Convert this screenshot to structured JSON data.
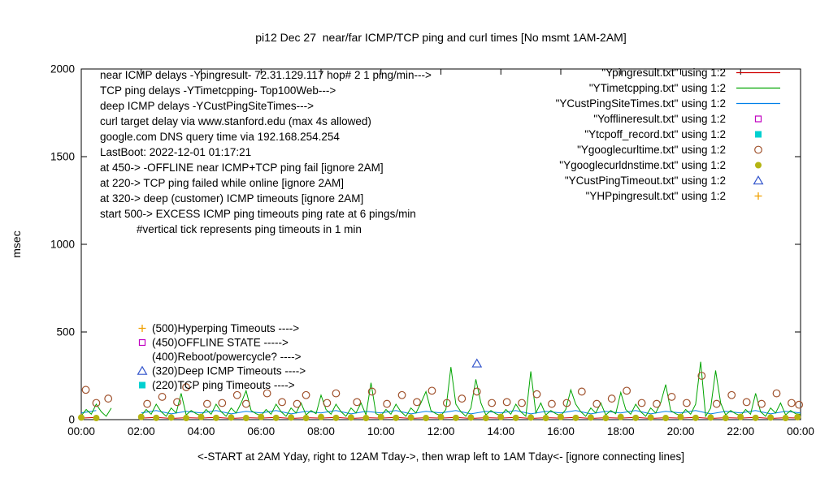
{
  "chart_data": {
    "type": "mixed-line-scatter",
    "title": "pi12 Dec 27  near/far ICMP/TCP ping and curl times [No msmt 1AM-2AM]",
    "xlabel": "<-START at 2AM Yday, right to 12AM Tday->, then wrap left to 1AM Tday<- [ignore connecting lines]",
    "ylabel": "msec",
    "x_tick_labels": [
      "00:00",
      "02:00",
      "04:00",
      "06:00",
      "08:00",
      "10:00",
      "12:00",
      "14:00",
      "16:00",
      "18:00",
      "20:00",
      "22:00",
      "00:00"
    ],
    "x_range_hours": [
      0,
      24
    ],
    "y_ticks": [
      0,
      500,
      1000,
      1500,
      2000
    ],
    "ylim": [
      0,
      2000
    ],
    "grid": false,
    "legend_position": "top-right",
    "inplot_notes": [
      {
        "text": "near ICMP delays -Ypingresult- 72.31.129.117 hop# 2 1 ping/min--->",
        "indent": 0
      },
      {
        "text": "TCP ping delays -YTimetcpping- Top100Web--->",
        "indent": 0
      },
      {
        "text": "deep ICMP delays -YCustPingSiteTimes--->",
        "indent": 0
      },
      {
        "text": "curl target delay via www.stanford.edu (max 4s allowed)",
        "indent": 0
      },
      {
        "text": "google.com DNS query time via 192.168.254.254",
        "indent": 0
      },
      {
        "text": "LastBoot: 2022-12-01 01:17:21",
        "indent": 0
      },
      {
        "text": "at 450-> -OFFLINE near ICMP+TCP ping fail [ignore 2AM]",
        "indent": 0
      },
      {
        "text": "at 220-> TCP ping failed while online [ignore 2AM]",
        "indent": 0
      },
      {
        "text": "at 320-> deep (customer) ICMP timeouts [ignore 2AM]",
        "indent": 0
      },
      {
        "text": "start 500-> EXCESS ICMP ping timeouts ping rate at 6 pings/min",
        "indent": 0
      },
      {
        "text": "#vertical tick represents ping timeouts in 1 min",
        "indent": 45
      }
    ],
    "level_annotations": [
      {
        "level": 500,
        "marker": "plus",
        "color": "#f0a000",
        "text": "(500)Hyperping Timeouts ---->"
      },
      {
        "level": 450,
        "marker": "square-open",
        "color": "#c000c0",
        "text": "(450)OFFLINE STATE ----->"
      },
      {
        "level": 400,
        "marker": "none",
        "color": "#000000",
        "text": "(400)Reboot/powercycle? ---->"
      },
      {
        "level": 320,
        "marker": "triangle-open",
        "color": "#3355cc",
        "text": "(320)Deep ICMP Timeouts ---->"
      },
      {
        "level": 220,
        "marker": "square-filled",
        "color": "#00d0d0",
        "text": "(220)TCP ping Timeouts ---->"
      }
    ],
    "legend": [
      {
        "label": "\"Ypingresult.txt\" using 1:2",
        "sample": "line",
        "color": "#d00000"
      },
      {
        "label": "\"YTimetcpping.txt\" using 1:2",
        "sample": "line",
        "color": "#00a400"
      },
      {
        "label": "\"YCustPingSiteTimes.txt\" using 1:2",
        "sample": "line",
        "color": "#0080e8"
      },
      {
        "label": "\"Yofflineresult.txt\" using 1:2",
        "sample": "square-open",
        "color": "#c000c0"
      },
      {
        "label": "\"Ytcpoff_record.txt\" using 1:2",
        "sample": "square-filled",
        "color": "#00d0d0"
      },
      {
        "label": "\"Ygooglecurltime.txt\" using 1:2",
        "sample": "circle-open",
        "color": "#a0522d"
      },
      {
        "label": "\"Ygooglecurldnstime.txt\" using 1:2",
        "sample": "circle-filled",
        "color": "#b4b412"
      },
      {
        "label": "\"YCustPingTimeout.txt\" using 1:2",
        "sample": "triangle-open",
        "color": "#3355cc"
      },
      {
        "label": "\"YHPpingresult.txt\" using 1:2",
        "sample": "plus",
        "color": "#f0a000"
      }
    ],
    "series": [
      {
        "name": "Ypingresult.txt",
        "desc": "near ICMP ping delay (msec)",
        "style": "line",
        "color": "#d00000",
        "x_start_hours": 0,
        "x_step_hours": 0.5,
        "values": [
          9,
          13,
          null,
          null,
          9,
          13,
          7,
          11,
          9,
          13,
          7,
          11,
          9,
          13,
          7,
          11,
          9,
          13,
          7,
          11,
          9,
          13,
          7,
          11,
          9,
          13,
          7,
          11,
          9,
          13,
          7,
          11,
          9,
          13,
          7,
          11,
          9,
          13,
          7,
          11,
          9,
          13,
          7,
          11,
          9,
          13,
          7,
          11,
          9
        ]
      },
      {
        "name": "YCustPingSiteTimes.txt",
        "desc": "deep ICMP ping delay (msec)",
        "style": "line",
        "color": "#0080e8",
        "x_start_hours": 0,
        "x_step_hours": 0.5,
        "values": [
          38,
          52,
          null,
          null,
          38,
          52,
          33,
          47,
          38,
          52,
          33,
          47,
          38,
          52,
          33,
          47,
          38,
          52,
          33,
          47,
          38,
          52,
          33,
          47,
          38,
          52,
          33,
          47,
          38,
          52,
          33,
          47,
          38,
          52,
          33,
          47,
          38,
          52,
          33,
          47,
          38,
          52,
          33,
          47,
          38,
          52,
          33,
          47,
          38
        ]
      },
      {
        "name": "YTimetcpping.txt",
        "desc": "TCP ping delay Top100Web (msec)",
        "style": "line",
        "color": "#00a400",
        "x_start_hours": 0,
        "x_step_hours": 0.1666667,
        "values": [
          22,
          58,
          31,
          88,
          45,
          19,
          66,
          null,
          null,
          null,
          null,
          null,
          22,
          58,
          31,
          88,
          45,
          19,
          66,
          38,
          150,
          27,
          52,
          34,
          22,
          58,
          31,
          88,
          45,
          19,
          66,
          38,
          95,
          165,
          52,
          34,
          22,
          58,
          31,
          88,
          45,
          19,
          66,
          38,
          95,
          27,
          52,
          34,
          140,
          58,
          31,
          88,
          45,
          19,
          66,
          38,
          95,
          27,
          210,
          34,
          22,
          58,
          31,
          88,
          45,
          19,
          66,
          38,
          95,
          160,
          52,
          34,
          22,
          58,
          300,
          88,
          45,
          19,
          66,
          230,
          95,
          27,
          52,
          34,
          22,
          58,
          31,
          88,
          45,
          19,
          275,
          38,
          95,
          27,
          52,
          34,
          22,
          58,
          170,
          88,
          45,
          19,
          66,
          38,
          95,
          27,
          52,
          34,
          155,
          58,
          31,
          88,
          45,
          19,
          66,
          38,
          95,
          200,
          52,
          34,
          22,
          58,
          31,
          88,
          330,
          19,
          66,
          280,
          95,
          27,
          52,
          34,
          22,
          58,
          31,
          150,
          45,
          19,
          66,
          38,
          95,
          27,
          52,
          34,
          30
        ]
      },
      {
        "name": "Yofflineresult.txt",
        "desc": "OFFLINE state events",
        "style": "points",
        "marker": "square-open",
        "color": "#c000c0",
        "points": []
      },
      {
        "name": "Ytcpoff_record.txt",
        "desc": "TCP ping failed while online events",
        "style": "points",
        "marker": "square-filled",
        "color": "#00d0d0",
        "points": []
      },
      {
        "name": "Ygooglecurltime.txt",
        "desc": "curl www.stanford.edu delay (msec)",
        "style": "points",
        "marker": "circle-open",
        "color": "#a0522d",
        "points": [
          [
            0.15,
            170
          ],
          [
            0.5,
            95
          ],
          [
            0.9,
            120
          ],
          [
            2.2,
            90
          ],
          [
            2.7,
            130
          ],
          [
            3.2,
            100
          ],
          [
            3.5,
            185
          ],
          [
            4.2,
            90
          ],
          [
            4.7,
            95
          ],
          [
            5.2,
            140
          ],
          [
            5.5,
            90
          ],
          [
            6.2,
            150
          ],
          [
            6.7,
            100
          ],
          [
            7.2,
            90
          ],
          [
            7.5,
            140
          ],
          [
            8.2,
            95
          ],
          [
            8.5,
            150
          ],
          [
            9.2,
            100
          ],
          [
            9.7,
            160
          ],
          [
            10.2,
            90
          ],
          [
            10.7,
            140
          ],
          [
            11.2,
            100
          ],
          [
            11.7,
            165
          ],
          [
            12.2,
            95
          ],
          [
            12.7,
            120
          ],
          [
            13.2,
            160
          ],
          [
            13.7,
            95
          ],
          [
            14.2,
            100
          ],
          [
            14.7,
            95
          ],
          [
            15.2,
            145
          ],
          [
            15.7,
            90
          ],
          [
            16.2,
            95
          ],
          [
            16.7,
            160
          ],
          [
            17.2,
            90
          ],
          [
            17.7,
            120
          ],
          [
            18.2,
            165
          ],
          [
            18.7,
            95
          ],
          [
            19.2,
            90
          ],
          [
            19.7,
            130
          ],
          [
            20.2,
            95
          ],
          [
            20.7,
            250
          ],
          [
            21.2,
            90
          ],
          [
            21.7,
            140
          ],
          [
            22.2,
            100
          ],
          [
            22.7,
            90
          ],
          [
            23.2,
            150
          ],
          [
            23.7,
            95
          ],
          [
            23.95,
            85
          ]
        ]
      },
      {
        "name": "Ygooglecurldnstime.txt",
        "desc": "google.com DNS query time (msec)",
        "style": "points",
        "marker": "circle-filled",
        "color": "#b4b412",
        "points": [
          [
            0,
            12
          ],
          [
            0.5,
            9
          ],
          [
            2,
            15
          ],
          [
            2.5,
            10
          ],
          [
            3,
            12
          ],
          [
            3.5,
            9
          ],
          [
            4,
            15
          ],
          [
            4.5,
            10
          ],
          [
            5,
            12
          ],
          [
            5.5,
            9
          ],
          [
            6,
            15
          ],
          [
            6.5,
            10
          ],
          [
            7,
            12
          ],
          [
            7.5,
            9
          ],
          [
            8,
            15
          ],
          [
            8.5,
            10
          ],
          [
            9,
            12
          ],
          [
            9.5,
            9
          ],
          [
            10,
            15
          ],
          [
            10.5,
            10
          ],
          [
            11,
            12
          ],
          [
            11.5,
            9
          ],
          [
            12,
            15
          ],
          [
            12.5,
            10
          ],
          [
            13,
            12
          ],
          [
            13.5,
            9
          ],
          [
            14,
            15
          ],
          [
            14.5,
            10
          ],
          [
            15,
            12
          ],
          [
            15.5,
            9
          ],
          [
            16,
            15
          ],
          [
            16.5,
            10
          ],
          [
            17,
            12
          ],
          [
            17.5,
            9
          ],
          [
            18,
            15
          ],
          [
            18.5,
            10
          ],
          [
            19,
            12
          ],
          [
            19.5,
            9
          ],
          [
            20,
            15
          ],
          [
            20.5,
            10
          ],
          [
            21,
            12
          ],
          [
            21.5,
            9
          ],
          [
            22,
            15
          ],
          [
            22.5,
            10
          ],
          [
            23,
            12
          ],
          [
            23.5,
            9
          ],
          [
            23.9,
            14
          ]
        ]
      },
      {
        "name": "YCustPingTimeout.txt",
        "desc": "deep (customer) ICMP timeout events",
        "style": "points",
        "marker": "triangle-open",
        "color": "#3355cc",
        "points": [
          [
            13.2,
            320
          ]
        ]
      },
      {
        "name": "YHPpingresult.txt",
        "desc": "Hyperping timeout events",
        "style": "points",
        "marker": "plus",
        "color": "#f0a000",
        "points": []
      }
    ]
  }
}
